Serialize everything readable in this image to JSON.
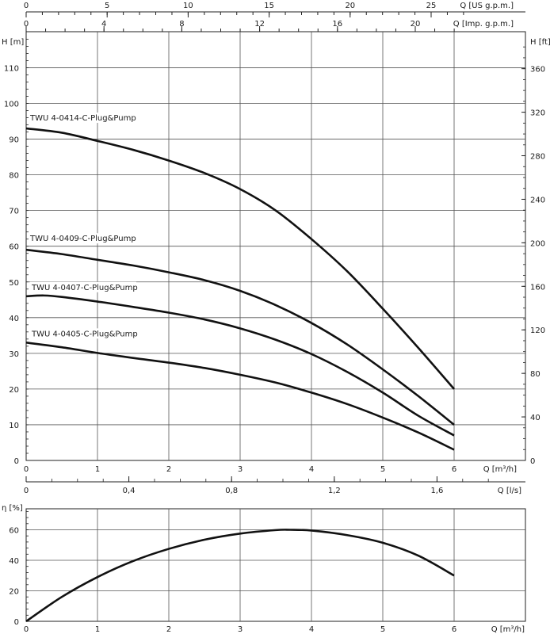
{
  "chart_data": [
    {
      "type": "line",
      "name": "head-chart",
      "xlabel": "Q [m³/h]",
      "ylabel": "H [m]",
      "xlim": [
        0,
        6
      ],
      "ylim": [
        0,
        119
      ],
      "x_ticks": [
        0,
        1,
        2,
        3,
        4,
        5,
        6
      ],
      "y_ticks": [
        0,
        10,
        20,
        30,
        40,
        50,
        60,
        70,
        80,
        90,
        100,
        110
      ],
      "grid": true,
      "secondary_axes": {
        "top_us": {
          "label": "Q [US g.p.m.]",
          "ticks": [
            0,
            5,
            10,
            15,
            20,
            25
          ],
          "per_m3h": 4.403
        },
        "top_imp": {
          "label": "Q [Imp. g.p.m.]",
          "ticks": [
            0,
            4,
            8,
            12,
            16,
            20
          ],
          "per_m3h": 3.666
        },
        "bottom_ls": {
          "label": "Q [l/s]",
          "ticks": [
            "0",
            "0,4",
            "0,8",
            "1,2",
            "1,6"
          ],
          "tick_values": [
            0,
            0.4,
            0.8,
            1.2,
            1.6
          ]
        },
        "right_ft": {
          "label": "H [ft]",
          "ticks": [
            0,
            40,
            80,
            120,
            160,
            200,
            240,
            280,
            320,
            360
          ],
          "ft_per_m": 3.2808
        }
      },
      "series": [
        {
          "name": "TWU 4-0414-C-Plug&Pump",
          "x": [
            0,
            0.5,
            1,
            1.5,
            2,
            2.5,
            3,
            3.5,
            4,
            4.5,
            5,
            5.5,
            6
          ],
          "y": [
            93,
            91.8,
            89.5,
            87,
            84,
            80.5,
            76,
            70,
            62,
            53,
            42.5,
            31.5,
            20
          ]
        },
        {
          "name": "TWU 4-0409-C-Plug&Pump",
          "x": [
            0,
            0.5,
            1,
            1.5,
            2,
            2.5,
            3,
            3.5,
            4,
            4.5,
            5,
            5.5,
            6
          ],
          "y": [
            59,
            57.8,
            56.2,
            54.6,
            52.7,
            50.5,
            47.5,
            43.5,
            38.5,
            32.5,
            25.5,
            18,
            10
          ]
        },
        {
          "name": "TWU 4-0407-C-Plug&Pump",
          "x": [
            0,
            0.25,
            0.5,
            1,
            1.5,
            2,
            2.5,
            3,
            3.5,
            4,
            4.5,
            5,
            5.5,
            6
          ],
          "y": [
            46,
            46.2,
            45.8,
            44.5,
            43,
            41.4,
            39.5,
            37,
            33.8,
            29.8,
            24.8,
            19,
            12.5,
            7
          ]
        },
        {
          "name": "TWU 4-0405-C-Plug&Pump",
          "x": [
            0,
            0.5,
            1,
            1.5,
            2,
            2.5,
            3,
            3.5,
            4,
            4.5,
            5,
            5.5,
            6
          ],
          "y": [
            33,
            31.7,
            30.1,
            28.7,
            27.4,
            25.9,
            24,
            21.8,
            19,
            15.8,
            12,
            7.8,
            3
          ]
        }
      ]
    },
    {
      "type": "line",
      "name": "efficiency-chart",
      "xlabel": "Q [m³/h]",
      "ylabel": "η [%]",
      "xlim": [
        0,
        6
      ],
      "ylim": [
        0,
        75
      ],
      "x_ticks": [
        0,
        1,
        2,
        3,
        4,
        5,
        6
      ],
      "y_ticks": [
        0,
        20,
        40,
        60
      ],
      "grid": true,
      "series": [
        {
          "x": [
            0,
            0.5,
            1,
            1.5,
            2,
            2.5,
            3,
            3.5,
            3.7,
            4,
            4.5,
            5,
            5.5,
            6
          ],
          "y": [
            0,
            16,
            29,
            39.5,
            47.5,
            53.5,
            57.5,
            59.8,
            60,
            59.5,
            56.5,
            51.5,
            43,
            30
          ]
        }
      ]
    }
  ]
}
